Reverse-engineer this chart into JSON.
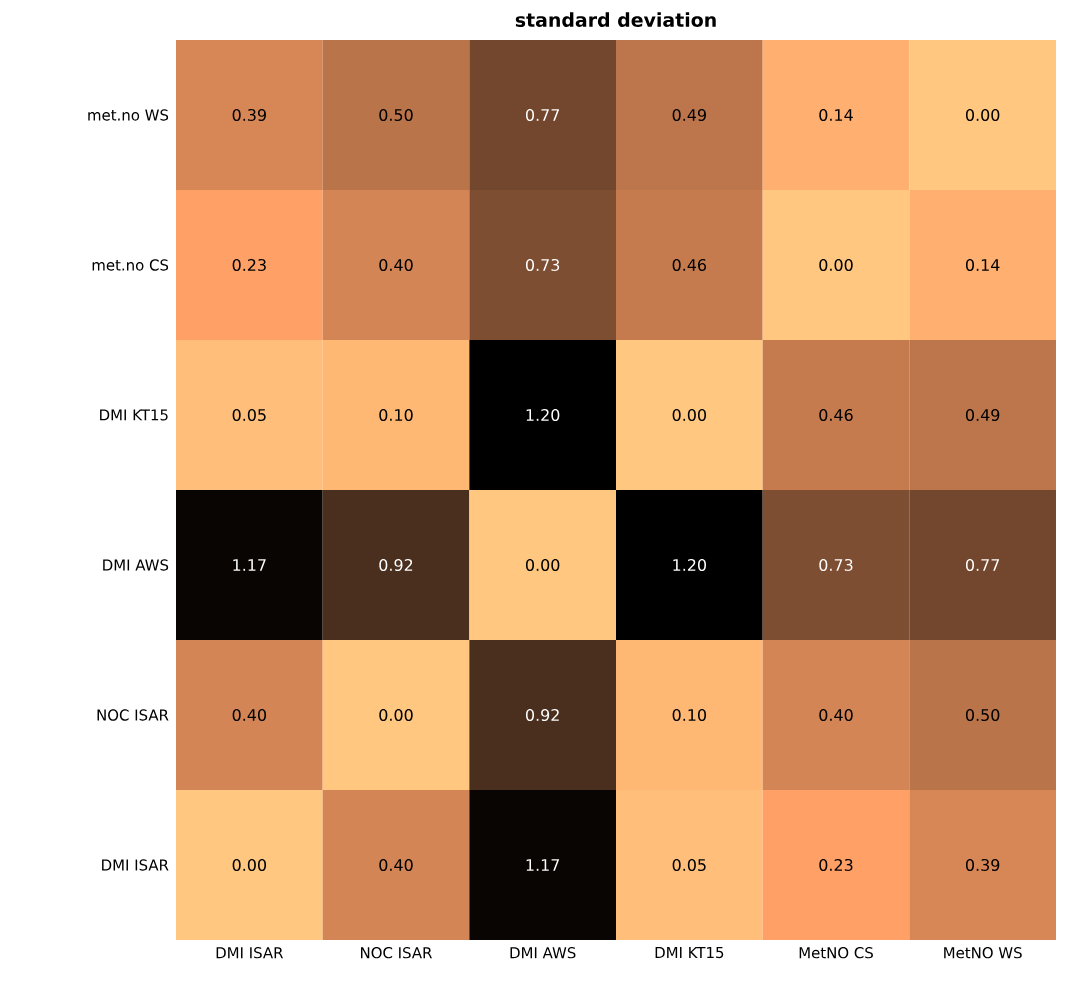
{
  "chart_data": {
    "type": "heatmap",
    "title": "standard deviation",
    "categories": [
      "DMI ISAR",
      "NOC ISAR",
      "DMI AWS",
      "DMI KT15",
      "MetNO CS",
      "MetNO WS"
    ],
    "y_categories": [
      "met.no WS",
      "met.no CS",
      "DMI KT15",
      "DMI AWS",
      "NOC ISAR",
      "DMI ISAR"
    ],
    "cells": [
      [
        0.39,
        0.5,
        0.77,
        0.49,
        0.14,
        0.0
      ],
      [
        0.23,
        0.4,
        0.73,
        0.46,
        0.0,
        0.14
      ],
      [
        0.05,
        0.1,
        1.2,
        0.0,
        0.46,
        0.49
      ],
      [
        1.17,
        0.92,
        0.0,
        1.2,
        0.73,
        0.77
      ],
      [
        0.4,
        0.0,
        0.92,
        0.1,
        0.4,
        0.5
      ],
      [
        0.0,
        0.4,
        1.17,
        0.05,
        0.23,
        0.39
      ]
    ],
    "cell_labels": [
      [
        "0.39",
        "0.50",
        "0.77",
        "0.49",
        "0.14",
        "0.00"
      ],
      [
        "0.23",
        "0.40",
        "0.73",
        "0.46",
        "0.00",
        "0.14"
      ],
      [
        "0.05",
        "0.10",
        "1.20",
        "0.00",
        "0.46",
        "0.49"
      ],
      [
        "1.17",
        "0.92",
        "0.00",
        "1.20",
        "0.73",
        "0.77"
      ],
      [
        "0.40",
        "0.00",
        "0.92",
        "0.10",
        "0.40",
        "0.50"
      ],
      [
        "0.00",
        "0.40",
        "1.17",
        "0.05",
        "0.23",
        "0.39"
      ]
    ]
  }
}
